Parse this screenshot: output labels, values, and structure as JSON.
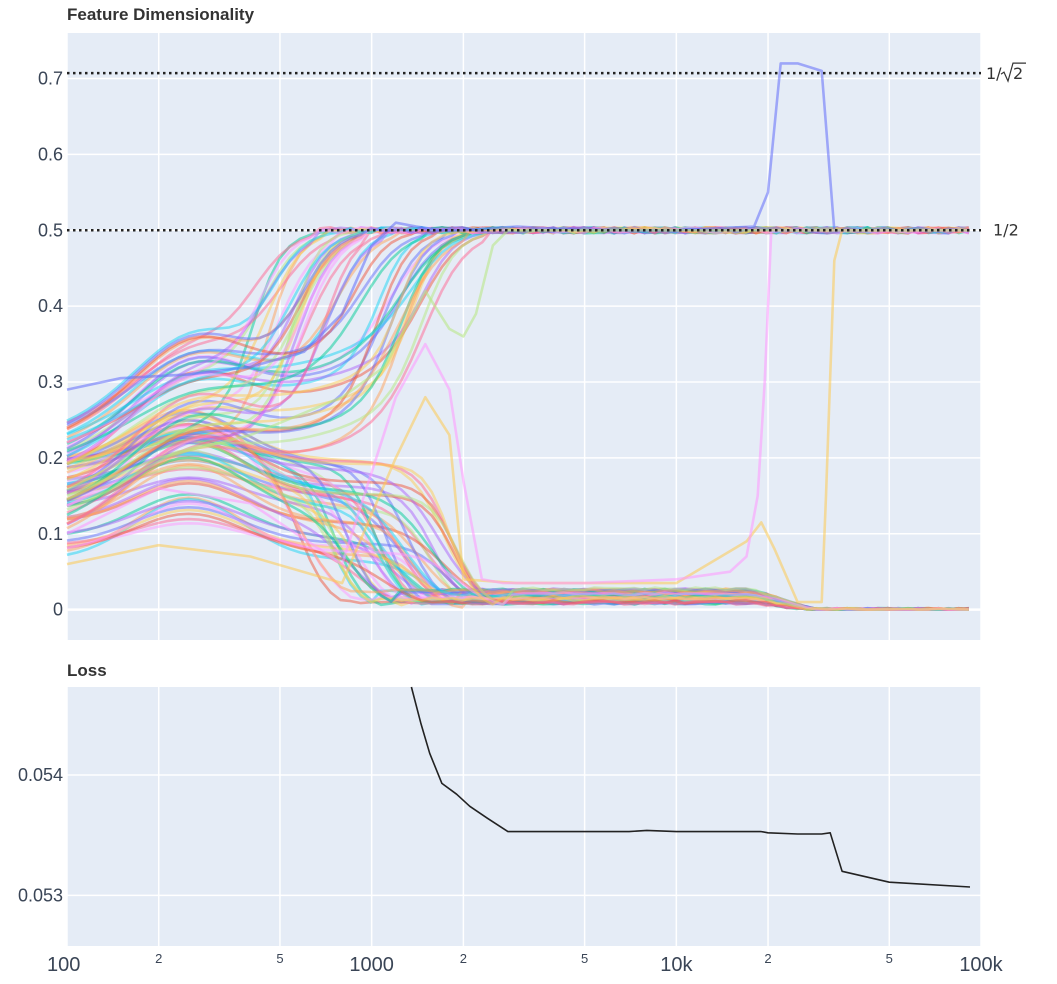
{
  "chart_data": [
    {
      "type": "line",
      "title": "Feature Dimensionality",
      "x_scale": "log",
      "xlim": [
        100,
        100000
      ],
      "ylim": [
        -0.04,
        0.76
      ],
      "y_ticks": [
        0,
        0.1,
        0.2,
        0.3,
        0.4,
        0.5,
        0.6,
        0.7
      ],
      "y_tick_labels": [
        "0",
        "0.1",
        "0.2",
        "0.3",
        "0.4",
        "0.5",
        "0.6",
        "0.7"
      ],
      "grid": true,
      "reference_lines": [
        {
          "y": 0.7071,
          "label_prefix": "1/",
          "label_radicand": "2",
          "style": "dotted"
        },
        {
          "y": 0.5,
          "label": "1/2",
          "style": "dotted"
        }
      ],
      "palette": [
        "#636efa",
        "#ef553b",
        "#00cc96",
        "#ab63fa",
        "#ffa15a",
        "#19d3f3",
        "#ff6692",
        "#b6e880",
        "#ff97ff",
        "#fecb52"
      ],
      "trace_groups": {
        "upper_count": 48,
        "upper_start_range": [
          0.1,
          0.25
        ],
        "upper_end_value": 0.5,
        "lower_count": 50,
        "lower_start_range": [
          0.06,
          0.2
        ],
        "lower_end_value": 0.0
      },
      "highlighted_series": [
        {
          "color": "#636efa",
          "x": [
            100,
            150,
            250,
            400,
            600,
            800,
            1000,
            1200,
            1400,
            1700,
            2000,
            3000,
            5000,
            10000,
            18000,
            20000,
            22000,
            25000,
            30000,
            33000,
            50000,
            90000
          ],
          "y": [
            0.29,
            0.305,
            0.31,
            0.32,
            0.34,
            0.39,
            0.48,
            0.51,
            0.505,
            0.5,
            0.5,
            0.505,
            0.5,
            0.5,
            0.505,
            0.55,
            0.72,
            0.72,
            0.71,
            0.5,
            0.5,
            0.5
          ]
        },
        {
          "color": "#fecb52",
          "x": [
            100,
            200,
            400,
            800,
            1200,
            1500,
            1800,
            2000,
            3000,
            10000,
            17000,
            19000,
            21000,
            25000,
            30000,
            31000,
            33000,
            35000,
            40000,
            90000
          ],
          "y": [
            0.06,
            0.085,
            0.07,
            0.035,
            0.2,
            0.28,
            0.23,
            0.04,
            0.035,
            0.035,
            0.09,
            0.115,
            0.08,
            0.01,
            0.01,
            0.15,
            0.46,
            0.5,
            0.5,
            0.5
          ]
        },
        {
          "color": "#ff97ff",
          "x": [
            100,
            200,
            400,
            800,
            1200,
            1500,
            1800,
            2000,
            2300,
            2700,
            5000,
            10000,
            15000,
            17000,
            18500,
            19500,
            20500,
            25000,
            90000
          ],
          "y": [
            0.1,
            0.16,
            0.14,
            0.06,
            0.28,
            0.35,
            0.29,
            0.17,
            0.04,
            0.035,
            0.035,
            0.04,
            0.05,
            0.07,
            0.15,
            0.3,
            0.5,
            0.5,
            0.5
          ]
        },
        {
          "color": "#b6e880",
          "x": [
            100,
            200,
            400,
            800,
            1100,
            1500,
            1800,
            2000,
            2200,
            2500,
            2800,
            10000,
            90000
          ],
          "y": [
            0.15,
            0.2,
            0.23,
            0.28,
            0.32,
            0.42,
            0.37,
            0.36,
            0.39,
            0.48,
            0.5,
            0.5,
            0.5
          ]
        }
      ]
    },
    {
      "type": "line",
      "title": "Loss",
      "x_scale": "log",
      "xlim": [
        100,
        100000
      ],
      "ylim": [
        0.05258,
        0.05473
      ],
      "y_ticks": [
        0.053,
        0.054
      ],
      "y_tick_labels": [
        "0.053",
        "0.054"
      ],
      "x_ticks": [
        100,
        200,
        500,
        1000,
        2000,
        5000,
        10000,
        20000,
        50000,
        100000
      ],
      "x_tick_labels": [
        "100",
        "2",
        "5",
        "1000",
        "2",
        "5",
        "10k",
        "2",
        "5",
        "100k"
      ],
      "x_tick_major": [
        true,
        false,
        false,
        true,
        false,
        false,
        true,
        false,
        false,
        true
      ],
      "grid": true,
      "series": [
        {
          "color": "#222222",
          "x": [
            1350,
            1450,
            1550,
            1700,
            1900,
            2100,
            2400,
            2800,
            3500,
            5000,
            7000,
            8000,
            10000,
            15000,
            19000,
            20000,
            25000,
            30000,
            32000,
            35000,
            50000,
            92000
          ],
          "y": [
            0.05473,
            0.05443,
            0.05418,
            0.05393,
            0.05384,
            0.05374,
            0.05364,
            0.05353,
            0.05353,
            0.05353,
            0.05353,
            0.05354,
            0.05353,
            0.05353,
            0.05353,
            0.05352,
            0.05351,
            0.05351,
            0.05352,
            0.0532,
            0.05311,
            0.05307
          ]
        }
      ]
    }
  ]
}
